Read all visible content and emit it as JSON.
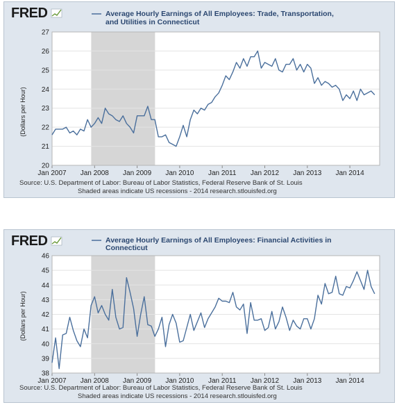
{
  "brand": "FRED",
  "accent_color": "#4a6f9c",
  "recession_color": "#d6d6d6",
  "chart_data": [
    {
      "type": "line",
      "title_line1": "Average Hourly Earnings of All Employees: Trade, Transportation,",
      "title_line2": "and Utilities in Connecticut",
      "legend_entry": "Average Hourly Earnings of All Employees: Trade, Transportation, and Utilities in Connecticut",
      "ylabel": "(Dollars per Hour)",
      "ylim": [
        20,
        27
      ],
      "yticks": [
        20,
        21,
        22,
        23,
        24,
        25,
        26,
        27
      ],
      "xlim": [
        2007,
        2014.7
      ],
      "xticks": [
        {
          "v": 2007,
          "label": "Jan 2007"
        },
        {
          "v": 2008,
          "label": "Jan 2008"
        },
        {
          "v": 2009,
          "label": "Jan 2009"
        },
        {
          "v": 2010,
          "label": "Jan 2010"
        },
        {
          "v": 2011,
          "label": "Jan 2011"
        },
        {
          "v": 2012,
          "label": "Jan 2012"
        },
        {
          "v": 2013,
          "label": "Jan 2013"
        },
        {
          "v": 2014,
          "label": "Jan 2014"
        }
      ],
      "recession": [
        2007.92,
        2009.42
      ],
      "source_line1": "Source: U.S. Department of Labor: Bureau of Labor Statistics, Federal Reserve Bank of St. Louis",
      "source_line2": "Shaded areas indicate US recessions - 2014 research.stlouisfed.org",
      "series": [
        {
          "x_start": 2007,
          "values": [
            21.6,
            21.9,
            21.9,
            21.9,
            22.0,
            21.7,
            21.8,
            21.6,
            21.9,
            21.8,
            22.4,
            22.0,
            22.2,
            22.5,
            22.2,
            23.0,
            22.7,
            22.6,
            22.4,
            22.3,
            22.6,
            22.2,
            22.0,
            21.7,
            22.6,
            22.6,
            22.6,
            23.1,
            22.4,
            22.4,
            21.5,
            21.5,
            21.6,
            21.2,
            21.1,
            21.0,
            21.5,
            22.1,
            21.5,
            22.4,
            22.9,
            22.7,
            23.0,
            22.9,
            23.2,
            23.3,
            23.6,
            23.8,
            24.2,
            24.7,
            24.5,
            24.9,
            25.4,
            25.1,
            25.6,
            25.2,
            25.7,
            25.7,
            26.0,
            25.1,
            25.4,
            25.3,
            25.2,
            25.6,
            25.0,
            24.9,
            25.3,
            25.3,
            25.6,
            25.0,
            25.3,
            24.9,
            25.3,
            25.1,
            24.3,
            24.6,
            24.2,
            24.4,
            24.3,
            24.1,
            24.2,
            24.0,
            23.4,
            23.7,
            23.5,
            23.9,
            23.4,
            24.0,
            23.7,
            23.8,
            23.9,
            23.7
          ]
        }
      ]
    },
    {
      "type": "line",
      "title_line1": "Average Hourly Earnings of All Employees: Financial Activities in",
      "title_line2": "Connecticut",
      "legend_entry": "Average Hourly Earnings of All Employees: Financial Activities in Connecticut",
      "ylabel": "(Dollars per Hour)",
      "ylim": [
        38,
        46
      ],
      "yticks": [
        38,
        39,
        40,
        41,
        42,
        43,
        44,
        45,
        46
      ],
      "xlim": [
        2007,
        2014.7
      ],
      "xticks": [
        {
          "v": 2007,
          "label": "Jan 2007"
        },
        {
          "v": 2008,
          "label": "Jan 2008"
        },
        {
          "v": 2009,
          "label": "Jan 2009"
        },
        {
          "v": 2010,
          "label": "Jan 2010"
        },
        {
          "v": 2011,
          "label": "Jan 2011"
        },
        {
          "v": 2012,
          "label": "Jan 2012"
        },
        {
          "v": 2013,
          "label": "Jan 2013"
        },
        {
          "v": 2014,
          "label": "Jan 2014"
        }
      ],
      "recession": [
        2007.92,
        2009.42
      ],
      "source_line1": "Source: U.S. Department of Labor: Bureau of Labor Statistics, Federal Reserve Bank of St. Louis",
      "source_line2": "Shaded areas indicate US recessions - 2014 research.stlouisfed.org",
      "series": [
        {
          "x_start": 2007,
          "values": [
            38.7,
            40.4,
            38.3,
            40.6,
            40.7,
            41.8,
            40.9,
            40.2,
            39.8,
            41.0,
            40.4,
            42.6,
            43.2,
            42.1,
            42.6,
            42.0,
            41.6,
            43.7,
            41.8,
            41.0,
            41.1,
            44.5,
            43.5,
            42.4,
            40.5,
            42.0,
            43.2,
            41.3,
            41.2,
            40.5,
            41.0,
            41.8,
            39.8,
            41.3,
            42.0,
            41.4,
            40.1,
            40.2,
            41.1,
            42.0,
            40.9,
            41.5,
            42.1,
            41.1,
            41.7,
            42.1,
            42.5,
            43.1,
            42.9,
            42.9,
            42.8,
            43.5,
            42.5,
            42.3,
            42.7,
            40.7,
            42.8,
            41.6,
            41.6,
            41.7,
            40.9,
            41.1,
            42.2,
            41.0,
            41.5,
            42.5,
            41.8,
            40.9,
            41.6,
            41.2,
            41.0,
            41.7,
            41.7,
            41.0,
            41.7,
            43.3,
            42.7,
            44.1,
            43.4,
            43.5,
            44.6,
            43.4,
            43.3,
            43.9,
            43.8,
            44.3,
            44.9,
            44.3,
            43.7,
            45.0,
            43.9,
            43.4
          ]
        }
      ]
    }
  ]
}
